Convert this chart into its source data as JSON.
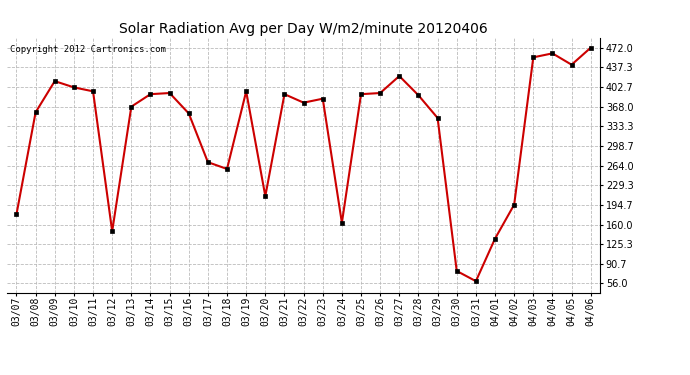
{
  "title": "Solar Radiation Avg per Day W/m2/minute 20120406",
  "copyright": "Copyright 2012 Cartronics.com",
  "dates": [
    "03/07",
    "03/08",
    "03/09",
    "03/10",
    "03/11",
    "03/12",
    "03/13",
    "03/14",
    "03/15",
    "03/16",
    "03/17",
    "03/18",
    "03/19",
    "03/20",
    "03/21",
    "03/22",
    "03/23",
    "03/24",
    "03/25",
    "03/26",
    "03/27",
    "03/28",
    "03/29",
    "03/30",
    "03/31",
    "04/01",
    "04/02",
    "04/03",
    "04/04",
    "04/05",
    "04/06"
  ],
  "values": [
    178,
    358,
    413,
    402,
    395,
    148,
    368,
    390,
    392,
    356,
    270,
    258,
    395,
    210,
    390,
    375,
    382,
    163,
    390,
    392,
    422,
    388,
    348,
    78,
    60,
    135,
    195,
    455,
    462,
    442,
    472
  ],
  "line_color": "#cc0000",
  "marker_color": "#000000",
  "background_color": "#ffffff",
  "grid_color": "#bbbbbb",
  "yticks": [
    56.0,
    90.7,
    125.3,
    160.0,
    194.7,
    229.3,
    264.0,
    298.7,
    333.3,
    368.0,
    402.7,
    437.3,
    472.0
  ],
  "ylim": [
    40,
    490
  ],
  "title_fontsize": 10,
  "axis_fontsize": 7,
  "copyright_fontsize": 6.5
}
